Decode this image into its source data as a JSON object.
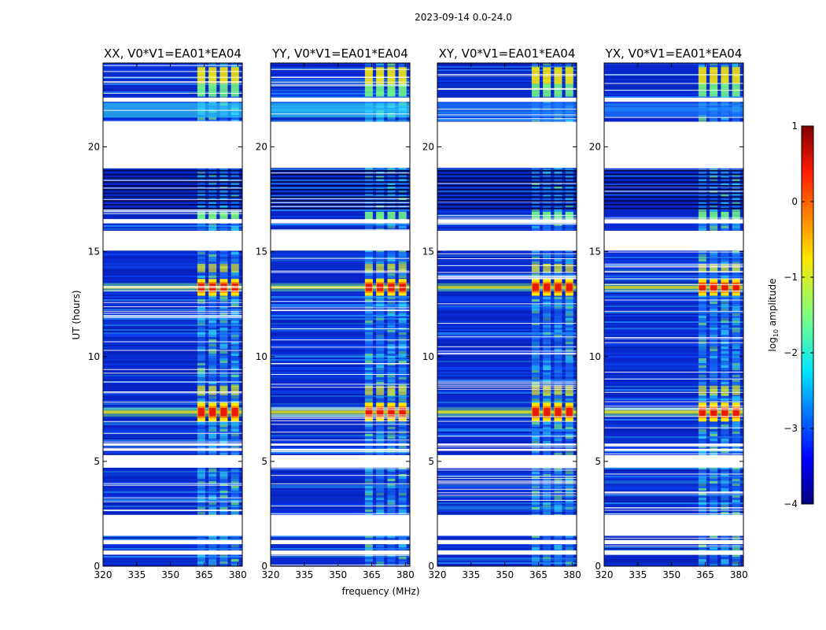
{
  "figure": {
    "suptitle": "2023-09-14 0.0-24.0"
  },
  "chart_data": {
    "type": "heatmap",
    "xlabel": "frequency (MHz)",
    "ylabel": "UT (hours)",
    "xlim": [
      320,
      382
    ],
    "ylim": [
      0,
      24
    ],
    "xticks": [
      320,
      335,
      350,
      365,
      380
    ],
    "yticks": [
      0,
      5,
      10,
      15,
      20
    ],
    "panels": [
      {
        "title": "XX, V0*V1=EA01*EA04",
        "polarization": "XX"
      },
      {
        "title": "YY, V0*V1=EA01*EA04",
        "polarization": "YY"
      },
      {
        "title": "XY, V0*V1=EA01*EA04",
        "polarization": "XY"
      },
      {
        "title": "YX, V0*V1=EA01*EA04",
        "polarization": "YX"
      }
    ],
    "colorbar": {
      "label_prefix": "log",
      "label_sub": "10",
      "label_suffix": " amplitude",
      "range": [
        -4,
        1
      ],
      "ticks": [
        "1",
        "0",
        "−1",
        "−2",
        "−3",
        "−4"
      ],
      "tick_values": [
        1,
        0,
        -1,
        -2,
        -3,
        -4
      ],
      "colormap": "jet"
    },
    "colors": {
      "background": "#00138f",
      "low": "#0a2ad8",
      "mid": "#1f82ff",
      "cyan": "#33e6ff",
      "green": "#7cff7a",
      "yellow": "#ffe600",
      "orange": "#ff8a00",
      "red": "#e81a00"
    },
    "rfi_bands_mhz": [
      [
        362,
        365.5
      ],
      [
        367,
        370.5
      ],
      [
        372,
        375.5
      ],
      [
        377,
        380.5
      ]
    ],
    "flagged_ut_ranges": [
      [
        0.55,
        0.75
      ],
      [
        1.05,
        1.25
      ],
      [
        1.45,
        2.45
      ],
      [
        19,
        21.2
      ],
      [
        16.35,
        16.55
      ],
      [
        15.05,
        16.0
      ],
      [
        22.15,
        22.35
      ],
      [
        4.7,
        5.3
      ],
      [
        5.5,
        5.6
      ],
      [
        5.75,
        5.85
      ]
    ],
    "bright_ut_ranges": [
      [
        12.9,
        13.7
      ],
      [
        6.9,
        7.8
      ]
    ]
  }
}
